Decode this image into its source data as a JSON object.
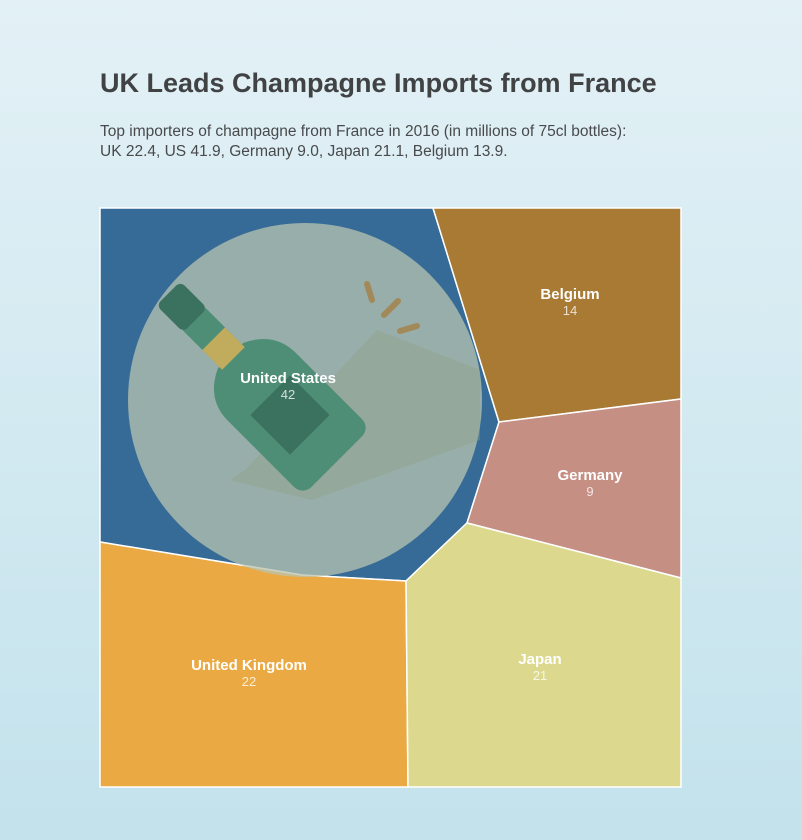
{
  "chart_data": {
    "type": "voronoi-treemap",
    "title": "UK Leads Champagne Imports from France",
    "subtitle_lines": [
      "Top importers of champagne from France in 2016 (in millions of 75cl bottles):",
      "UK 22.4, US 41.9, Germany 9.0, Japan 21.1, Belgium 13.9."
    ],
    "cells": [
      {
        "name": "United States",
        "value": 42,
        "color": "#366b97"
      },
      {
        "name": "Belgium",
        "value": 14,
        "color": "#a87a33"
      },
      {
        "name": "Germany",
        "value": 9,
        "color": "#c58f84"
      },
      {
        "name": "United Kingdom",
        "value": 22,
        "color": "#eba943"
      },
      {
        "name": "Japan",
        "value": 21,
        "color": "#dcd98e"
      }
    ],
    "decoration": "champagne-bottle-icon"
  }
}
